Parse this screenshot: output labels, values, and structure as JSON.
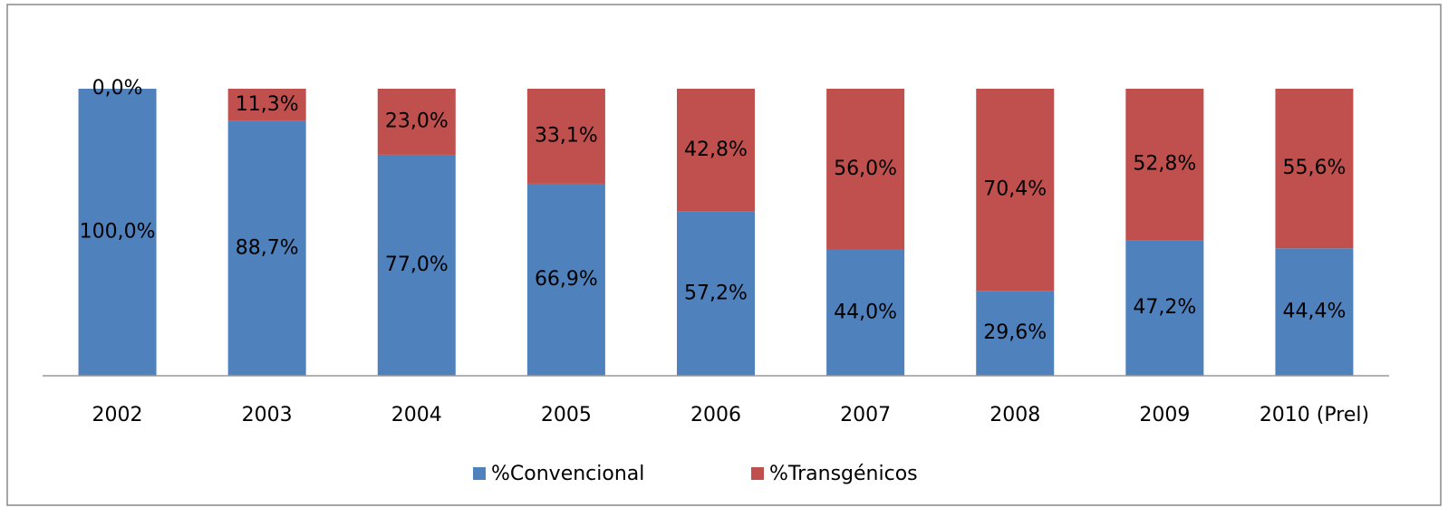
{
  "chart_data": {
    "type": "stacked_bar_100",
    "categories": [
      "2002",
      "2003",
      "2004",
      "2005",
      "2006",
      "2007",
      "2008",
      "2009",
      "2010 (Prel)"
    ],
    "series": [
      {
        "name": "%Convencional",
        "color": "#4f81bd",
        "values": [
          100.0,
          88.7,
          77.0,
          66.9,
          57.2,
          44.0,
          29.6,
          47.2,
          44.4
        ],
        "value_labels": [
          "100,0%",
          "88,7%",
          "77,0%",
          "66,9%",
          "57,2%",
          "44,0%",
          "29,6%",
          "47,2%",
          "44,4%"
        ]
      },
      {
        "name": "%Transgénicos",
        "color": "#c0504d",
        "values": [
          0.0,
          11.3,
          23.0,
          33.1,
          42.8,
          56.0,
          70.4,
          52.8,
          55.6
        ],
        "value_labels": [
          "0,0%",
          "11,3%",
          "23,0%",
          "33,1%",
          "42,8%",
          "56,0%",
          "70,4%",
          "52,8%",
          "55,6%"
        ]
      }
    ],
    "legend": "bottom"
  }
}
